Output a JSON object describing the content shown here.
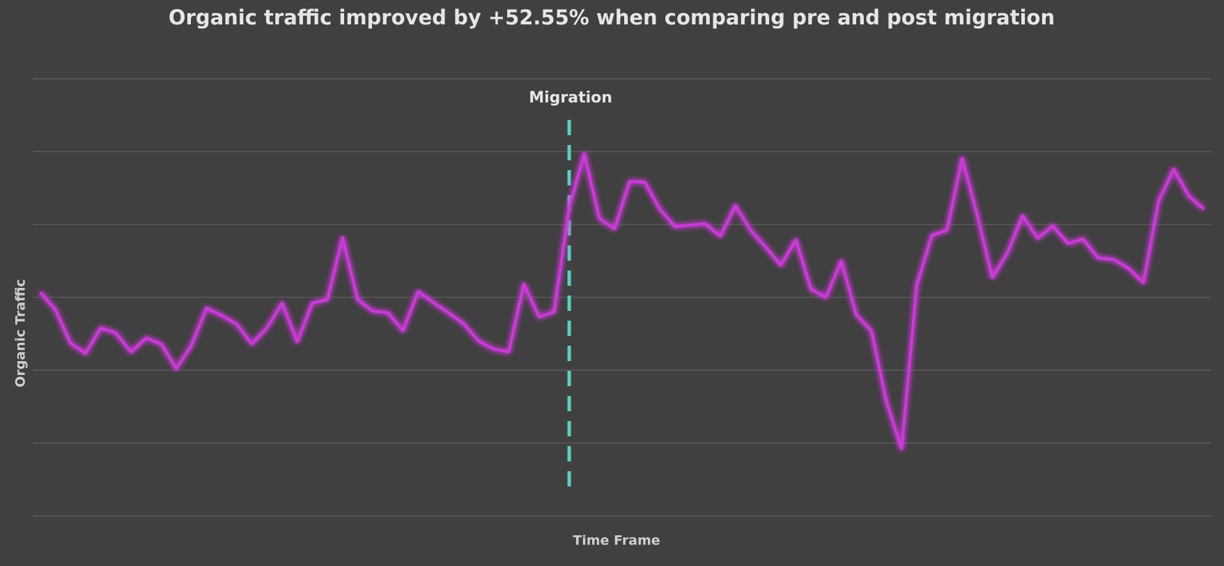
{
  "chart_data": {
    "type": "line",
    "title": "Organic traffic improved by +52.55% when comparing pre and post migration",
    "x_label": "Time Frame",
    "y_label": "Organic Traffic",
    "x": [
      0,
      1,
      2,
      3,
      4,
      5,
      6,
      7,
      8,
      9,
      10,
      11,
      12,
      13,
      14,
      15,
      16,
      17,
      18,
      19,
      20,
      21,
      22,
      23,
      24,
      25,
      26,
      27,
      28,
      29,
      30,
      31,
      32,
      33,
      34,
      35,
      36,
      37,
      38,
      39,
      40,
      41,
      42,
      43,
      44,
      45,
      46,
      47,
      48,
      49,
      50,
      51,
      52,
      53,
      54,
      55,
      56,
      57,
      58,
      59,
      60,
      61,
      62,
      63,
      64,
      65,
      66,
      67,
      68,
      69,
      70,
      71,
      72,
      73,
      74,
      75,
      76,
      77
    ],
    "values": [
      3.07,
      2.83,
      2.37,
      2.23,
      2.58,
      2.51,
      2.25,
      2.44,
      2.36,
      2.02,
      2.34,
      2.85,
      2.75,
      2.63,
      2.36,
      2.58,
      2.92,
      2.39,
      2.92,
      2.97,
      3.82,
      2.97,
      2.81,
      2.79,
      2.54,
      3.08,
      2.93,
      2.79,
      2.64,
      2.4,
      2.29,
      2.25,
      3.18,
      2.73,
      2.8,
      4.24,
      4.97,
      4.08,
      3.94,
      4.59,
      4.58,
      4.21,
      3.97,
      3.99,
      4.01,
      3.84,
      4.26,
      3.92,
      3.69,
      3.44,
      3.79,
      3.11,
      3.0,
      3.5,
      2.76,
      2.54,
      1.56,
      0.92,
      3.17,
      3.85,
      3.92,
      4.91,
      4.13,
      3.27,
      3.61,
      4.12,
      3.81,
      3.98,
      3.74,
      3.8,
      3.54,
      3.52,
      3.4,
      3.2,
      4.32,
      4.76,
      4.39,
      4.21
    ],
    "color": "#c93ad6",
    "xlim": [
      -0.5,
      77.5
    ],
    "ylim": [
      0,
      6
    ],
    "yticks": [
      0,
      1,
      2,
      3,
      4,
      5,
      6
    ],
    "grid": true,
    "annotation": {
      "x": 35,
      "label": "Migration",
      "color": "#5ecdbf"
    }
  }
}
